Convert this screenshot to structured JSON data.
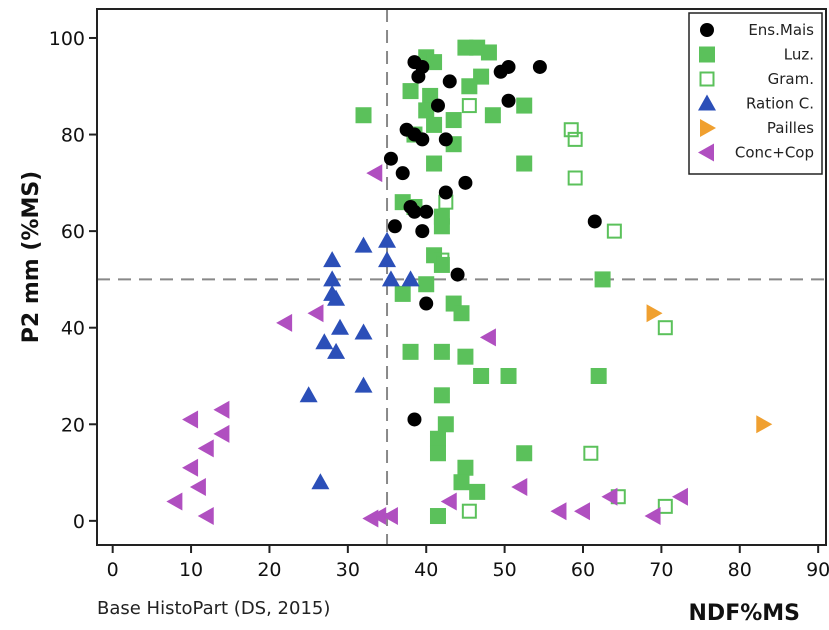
{
  "chart_data": {
    "type": "scatter",
    "xlabel": "NDF%MS",
    "ylabel": "P2 mm (%MS)",
    "source_note": "Base HistoPart (DS, 2015)",
    "xlim": [
      -2,
      91
    ],
    "ylim": [
      -5,
      106
    ],
    "x_ticks": [
      0,
      10,
      20,
      30,
      40,
      50,
      60,
      70,
      80,
      90
    ],
    "y_ticks": [
      0,
      20,
      40,
      60,
      80,
      100
    ],
    "grid": false,
    "legend_position": "top-right",
    "reference_lines": {
      "x": 35,
      "y": 50
    },
    "reference_line_color": "#888888",
    "series": [
      {
        "name": "Ens.Mais",
        "marker": "circle",
        "color": "#000000",
        "points": [
          [
            38.5,
            95
          ],
          [
            39.5,
            94
          ],
          [
            39,
            92
          ],
          [
            43,
            91
          ],
          [
            49.5,
            93
          ],
          [
            50.5,
            94
          ],
          [
            54.5,
            94
          ],
          [
            41.5,
            86
          ],
          [
            50.5,
            87
          ],
          [
            37.5,
            81
          ],
          [
            38.5,
            80
          ],
          [
            39.5,
            79
          ],
          [
            42.5,
            79
          ],
          [
            35.5,
            75
          ],
          [
            37,
            72
          ],
          [
            45,
            70
          ],
          [
            42.5,
            68
          ],
          [
            38,
            65
          ],
          [
            38.5,
            64
          ],
          [
            40,
            64
          ],
          [
            61.5,
            62
          ],
          [
            36,
            61
          ],
          [
            39.5,
            60
          ],
          [
            44,
            51
          ],
          [
            40,
            45
          ],
          [
            38.5,
            21
          ]
        ]
      },
      {
        "name": "Luz.",
        "marker": "square-filled",
        "color": "#5bc15b",
        "points": [
          [
            45,
            98
          ],
          [
            46.5,
            98
          ],
          [
            48,
            97
          ],
          [
            40,
            96
          ],
          [
            41,
            95
          ],
          [
            47,
            92
          ],
          [
            45.5,
            90
          ],
          [
            38,
            89
          ],
          [
            40.5,
            88
          ],
          [
            40,
            85
          ],
          [
            52.5,
            86
          ],
          [
            32,
            84
          ],
          [
            41,
            82
          ],
          [
            43.5,
            83
          ],
          [
            48.5,
            84
          ],
          [
            38.5,
            80
          ],
          [
            43.5,
            78
          ],
          [
            41,
            74
          ],
          [
            52.5,
            74
          ],
          [
            37,
            66
          ],
          [
            38.5,
            65
          ],
          [
            42,
            63
          ],
          [
            42,
            61
          ],
          [
            41,
            55
          ],
          [
            42,
            53
          ],
          [
            62.5,
            50
          ],
          [
            40,
            49
          ],
          [
            37,
            47
          ],
          [
            43.5,
            45
          ],
          [
            44.5,
            43
          ],
          [
            38,
            35
          ],
          [
            42,
            35
          ],
          [
            45,
            34
          ],
          [
            47,
            30
          ],
          [
            50.5,
            30
          ],
          [
            62,
            30
          ],
          [
            42,
            26
          ],
          [
            42.5,
            20
          ],
          [
            41.5,
            17
          ],
          [
            41.5,
            14
          ],
          [
            52.5,
            14
          ],
          [
            45,
            11
          ],
          [
            44.5,
            8
          ],
          [
            46.5,
            6
          ],
          [
            41.5,
            1
          ]
        ]
      },
      {
        "name": "Gram.",
        "marker": "square-open",
        "color": "#5bc15b",
        "points": [
          [
            45.5,
            86
          ],
          [
            58.5,
            81
          ],
          [
            59,
            79
          ],
          [
            59,
            71
          ],
          [
            42.5,
            66
          ],
          [
            42,
            54
          ],
          [
            64,
            60
          ],
          [
            70.5,
            40
          ],
          [
            61,
            14
          ],
          [
            64.5,
            5
          ],
          [
            70.5,
            3
          ],
          [
            45.5,
            2
          ]
        ]
      },
      {
        "name": "Ration C.",
        "marker": "triangle-up",
        "color": "#2b4fb8",
        "points": [
          [
            32,
            57
          ],
          [
            35,
            58
          ],
          [
            28,
            54
          ],
          [
            35,
            54
          ],
          [
            35.5,
            50
          ],
          [
            38,
            50
          ],
          [
            28,
            50
          ],
          [
            28,
            47
          ],
          [
            28.5,
            46
          ],
          [
            29,
            40
          ],
          [
            32,
            39
          ],
          [
            27,
            37
          ],
          [
            28.5,
            35
          ],
          [
            32,
            28
          ],
          [
            25,
            26
          ],
          [
            26.5,
            8
          ]
        ]
      },
      {
        "name": "Pailles",
        "marker": "triangle-right",
        "color": "#f0a030",
        "points": [
          [
            69,
            43
          ],
          [
            83,
            20
          ]
        ]
      },
      {
        "name": "Conc+Cop",
        "marker": "triangle-left",
        "color": "#b04fc0",
        "points": [
          [
            33.5,
            72
          ],
          [
            26,
            43
          ],
          [
            22,
            41
          ],
          [
            48,
            38
          ],
          [
            14,
            23
          ],
          [
            10,
            21
          ],
          [
            14,
            18
          ],
          [
            12,
            15
          ],
          [
            10,
            11
          ],
          [
            11,
            7
          ],
          [
            8,
            4
          ],
          [
            12,
            1
          ],
          [
            52,
            7
          ],
          [
            43,
            4
          ],
          [
            57,
            2
          ],
          [
            60,
            2
          ],
          [
            63.5,
            5
          ],
          [
            69,
            1
          ],
          [
            72.5,
            5
          ],
          [
            33,
            0.5
          ],
          [
            34,
            1
          ],
          [
            35.5,
            1
          ]
        ]
      }
    ]
  }
}
